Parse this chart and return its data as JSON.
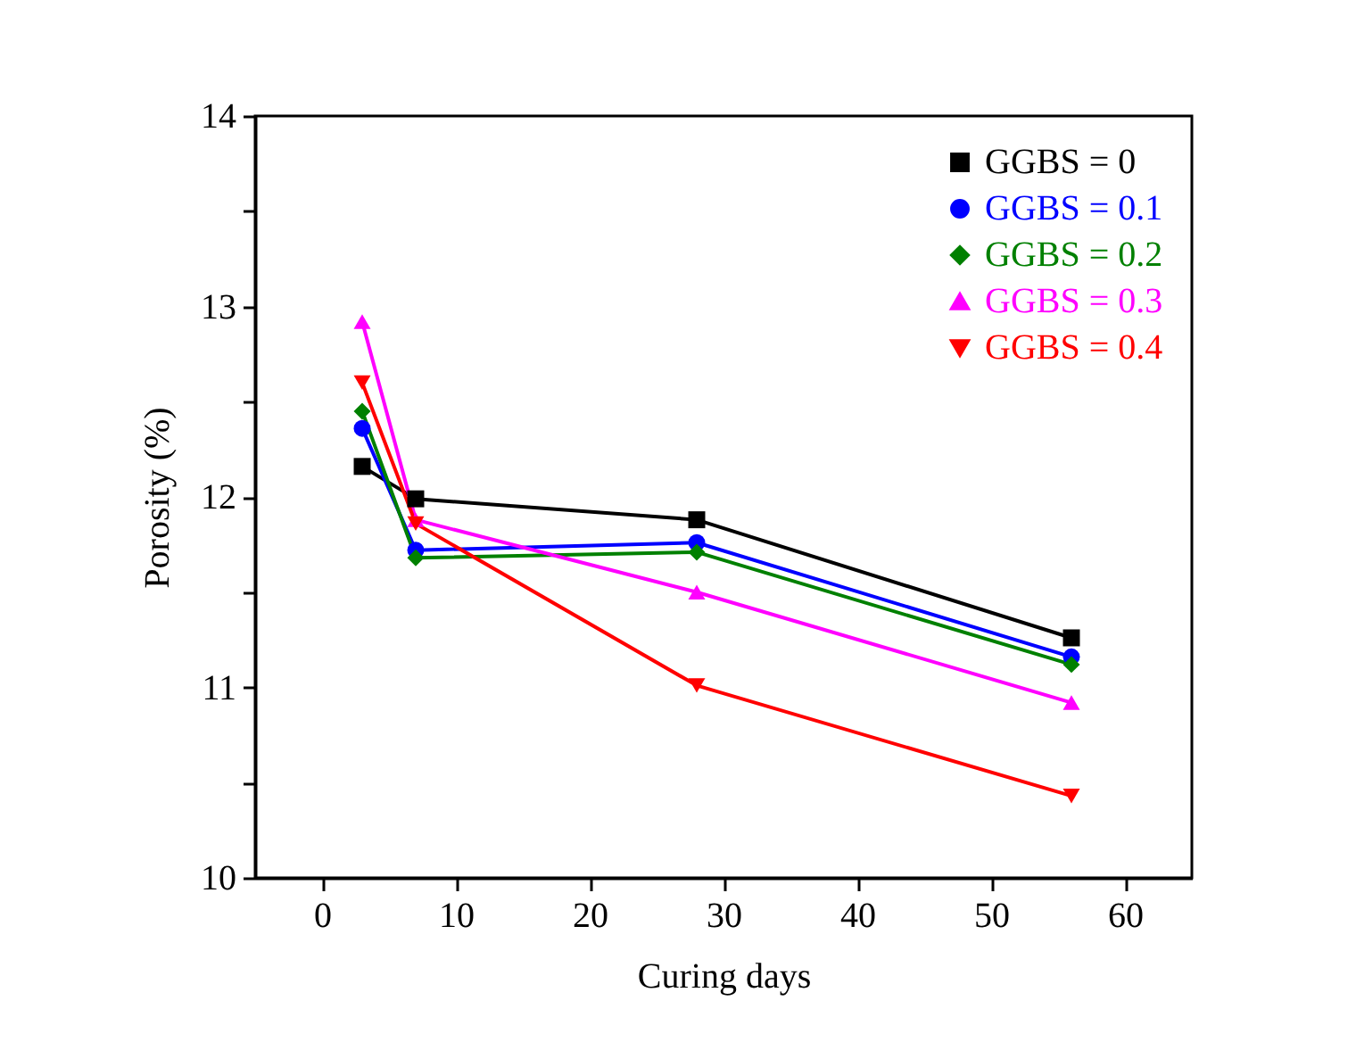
{
  "chart_data": {
    "type": "line",
    "xlabel": "Curing days",
    "ylabel": "Porosity (%)",
    "x": [
      3,
      7,
      28,
      56
    ],
    "xlim": [
      -5,
      65
    ],
    "xticks": [
      0,
      10,
      20,
      30,
      40,
      50,
      60
    ],
    "ylim": [
      10,
      14
    ],
    "yticks": [
      10,
      {
        "value": 10.5,
        "label": null
      },
      11,
      {
        "value": 11.5,
        "label": null
      },
      12,
      {
        "value": 12.5,
        "label": null
      },
      13,
      {
        "value": 13.5,
        "label": null
      },
      14
    ],
    "grid": false,
    "legend": "top right",
    "series": [
      {
        "name": "GGBS = 0",
        "color": "#000000",
        "marker": "square",
        "values": [
          12.16,
          11.99,
          11.88,
          11.26
        ]
      },
      {
        "name": "GGBS = 0.1",
        "color": "#0000ff",
        "marker": "circle",
        "values": [
          12.36,
          11.72,
          11.76,
          11.16
        ]
      },
      {
        "name": "GGBS = 0.2",
        "color": "#008000",
        "marker": "diamond",
        "values": [
          12.45,
          11.68,
          11.71,
          11.12
        ]
      },
      {
        "name": "GGBS = 0.3",
        "color": "#ff00ff",
        "marker": "triangle",
        "values": [
          12.92,
          11.88,
          11.5,
          10.92
        ]
      },
      {
        "name": "GGBS = 0.4",
        "color": "#ff0000",
        "marker": "triangle-down",
        "values": [
          12.6,
          11.86,
          11.01,
          10.43
        ]
      }
    ]
  }
}
